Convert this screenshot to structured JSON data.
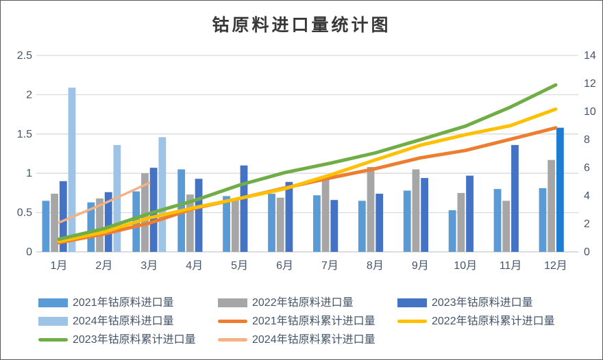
{
  "title": "钴原料进口量统计图",
  "chart_data": {
    "type": "bar+line combo",
    "title": "钴原料进口量统计图",
    "categories": [
      "1月",
      "2月",
      "3月",
      "4月",
      "5月",
      "6月",
      "7月",
      "8月",
      "9月",
      "10月",
      "11月",
      "12月"
    ],
    "bar_series": [
      {
        "name": "2021年钴原料进口量",
        "color": "#5B9BD5",
        "axis": "left",
        "values": [
          0.65,
          0.63,
          0.77,
          1.05,
          0.71,
          0.74,
          0.72,
          0.65,
          0.78,
          0.53,
          0.8,
          0.81
        ]
      },
      {
        "name": "2022年钴原料进口量",
        "color": "#A6A6A6",
        "axis": "left",
        "values": [
          0.74,
          0.68,
          1.0,
          0.73,
          0.66,
          0.69,
          0.97,
          1.08,
          1.05,
          0.75,
          0.65,
          1.17
        ]
      },
      {
        "name": "2023年钴原料进口量",
        "color": "#4472C4",
        "axis": "left",
        "last_bar_color": "#1E7CD2",
        "values": [
          0.9,
          0.76,
          1.07,
          0.93,
          1.1,
          0.89,
          0.66,
          0.74,
          0.94,
          0.97,
          1.36,
          1.58
        ]
      },
      {
        "name": "2024年钴原料进口量",
        "color": "#9DC3E6",
        "axis": "left",
        "values": [
          2.09,
          1.36,
          1.46,
          null,
          null,
          null,
          null,
          null,
          null,
          null,
          null,
          null
        ]
      }
    ],
    "line_series": [
      {
        "name": "2021年钴原料累计进口量",
        "color": "#ED7D31",
        "axis": "right",
        "width": 5,
        "values": [
          0.65,
          1.28,
          2.05,
          3.1,
          3.81,
          4.55,
          5.27,
          5.92,
          6.7,
          7.23,
          8.03,
          8.84
        ]
      },
      {
        "name": "2022年钴原料累计进口量",
        "color": "#FFC000",
        "axis": "right",
        "width": 5,
        "values": [
          0.74,
          1.42,
          2.42,
          3.15,
          3.81,
          4.5,
          5.47,
          6.55,
          7.6,
          8.35,
          9.0,
          10.17
        ]
      },
      {
        "name": "2023年钴原料累计进口量",
        "color": "#70AD47",
        "axis": "right",
        "width": 5,
        "values": [
          0.9,
          1.66,
          2.73,
          3.66,
          4.76,
          5.65,
          6.31,
          7.05,
          7.99,
          8.96,
          10.32,
          11.9
        ]
      },
      {
        "name": "2024年钴原料累计进口量",
        "color": "#F4B183",
        "axis": "right",
        "width": 3.5,
        "values": [
          2.09,
          3.45,
          4.91,
          null,
          null,
          null,
          null,
          null,
          null,
          null,
          null,
          null
        ]
      }
    ],
    "left_axis": {
      "min": 0,
      "max": 2.5,
      "tick_labels": [
        "2.5",
        "2",
        "1.5",
        "1",
        "0.5",
        "0"
      ],
      "tick_values": [
        2.5,
        2,
        1.5,
        1,
        0.5,
        0
      ]
    },
    "right_axis": {
      "min": 0,
      "max": 14,
      "tick_labels": [
        "14",
        "12",
        "10",
        "8",
        "6",
        "4",
        "2",
        "0"
      ],
      "tick_values": [
        14,
        12,
        10,
        8,
        6,
        4,
        2,
        0
      ]
    },
    "grid": true,
    "legend_position": "bottom"
  },
  "colors": {
    "gridline": "#D9D9D9",
    "axis_line": "#C6C6C6",
    "axis_label": "#44546A",
    "legend_label": "#44546A",
    "title": "#383838"
  }
}
